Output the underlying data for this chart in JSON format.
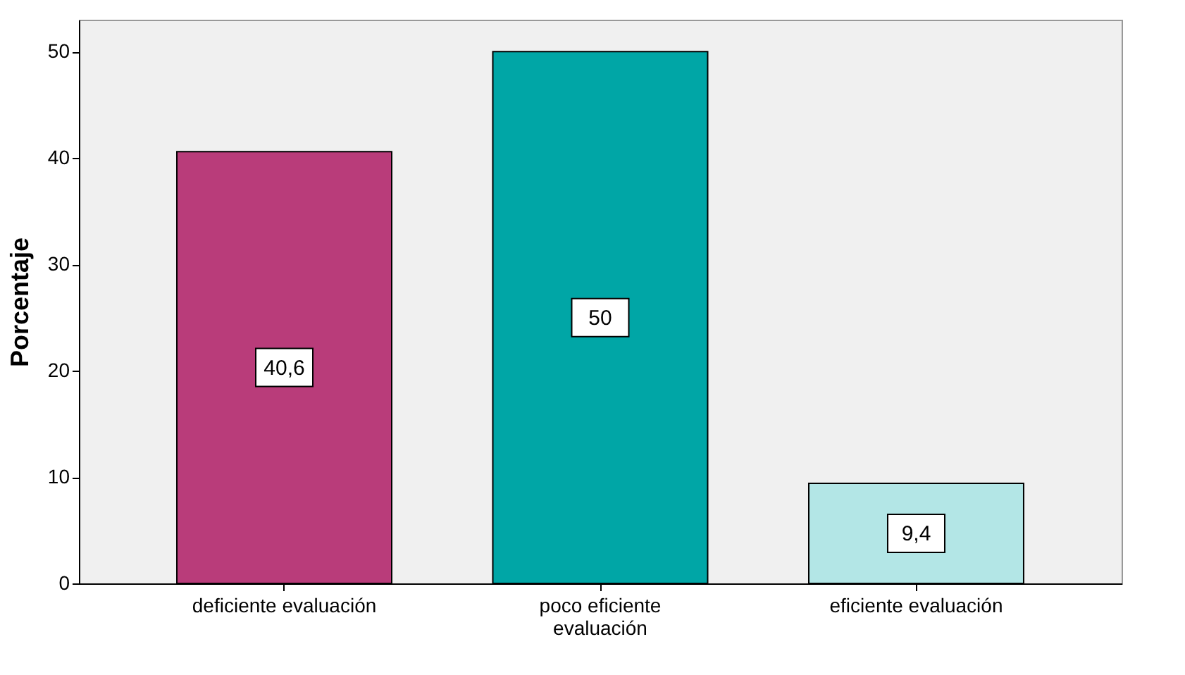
{
  "chart_data": {
    "type": "bar",
    "ylabel": "Porcentaje",
    "categories": [
      "deficiente evaluación",
      "poco eficiente\nevaluación",
      "eficiente evaluación"
    ],
    "values": [
      40.6,
      50,
      9.4
    ],
    "colors": [
      "#b93c7a",
      "#00a6a6",
      "#b3e6e6"
    ],
    "value_labels": [
      "40,6",
      "50",
      "9,4"
    ],
    "ylim": [
      0,
      53
    ],
    "yticks": [
      0,
      10,
      20,
      30,
      40,
      50
    ],
    "grid": false,
    "legend": false
  }
}
